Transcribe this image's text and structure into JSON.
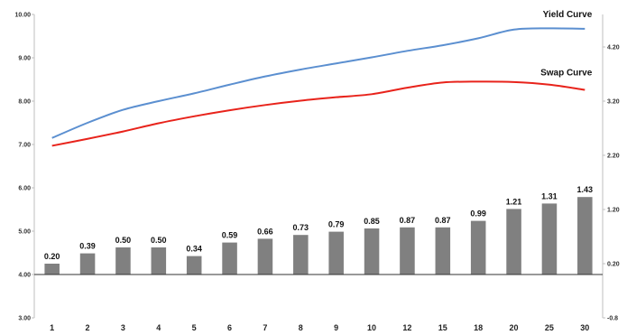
{
  "chart_data": {
    "type": "bar+line",
    "categories": [
      "1",
      "2",
      "3",
      "4",
      "5",
      "6",
      "7",
      "8",
      "9",
      "10",
      "12",
      "15",
      "18",
      "20",
      "25",
      "30"
    ],
    "series": [
      {
        "name": "Yield Curve",
        "type": "line",
        "axis": "left",
        "color": "#5B8FD0",
        "values": [
          7.15,
          7.5,
          7.8,
          8.0,
          8.18,
          8.38,
          8.57,
          8.73,
          8.87,
          9.01,
          9.16,
          9.29,
          9.45,
          9.65,
          9.68,
          9.67
        ]
      },
      {
        "name": "Swap Curve",
        "type": "line",
        "axis": "left",
        "color": "#E8231B",
        "values": [
          6.97,
          7.13,
          7.3,
          7.49,
          7.65,
          7.79,
          7.91,
          8.01,
          8.09,
          8.16,
          8.31,
          8.43,
          8.45,
          8.44,
          8.38,
          8.26
        ]
      },
      {
        "name": "",
        "type": "bar",
        "axis": "right",
        "color": "#808080",
        "values": [
          0.2,
          0.39,
          0.5,
          0.5,
          0.34,
          0.59,
          0.66,
          0.73,
          0.79,
          0.85,
          0.87,
          0.87,
          0.99,
          1.21,
          1.31,
          1.43
        ],
        "labels": [
          "0.20",
          "0.39",
          "0.50",
          "0.50",
          "0.34",
          "0.59",
          "0.66",
          "0.73",
          "0.79",
          "0.85",
          "0.87",
          "0.87",
          "0.99",
          "1.21",
          "1.31",
          "1.43"
        ]
      }
    ],
    "y_left": {
      "ylim": [
        3.0,
        10.0
      ],
      "ticks": [
        3,
        4,
        5,
        6,
        7,
        8,
        9,
        10
      ],
      "tick_labels": [
        "3.00",
        "4.00",
        "5.00",
        "6.00",
        "7.00",
        "8.00",
        "9.00",
        "10.00"
      ]
    },
    "y_right": {
      "ylim": [
        -0.8,
        4.8
      ],
      "ticks": [
        -0.8,
        0.2,
        1.2,
        2.2,
        3.2,
        4.2
      ],
      "tick_labels": [
        "-0.8",
        "0.20",
        "1.20",
        "2.20",
        "3.20",
        "4.20"
      ]
    },
    "title": "",
    "xlabel": "",
    "ylabel": "",
    "grid": false,
    "legend": "inline labels near line ends"
  }
}
